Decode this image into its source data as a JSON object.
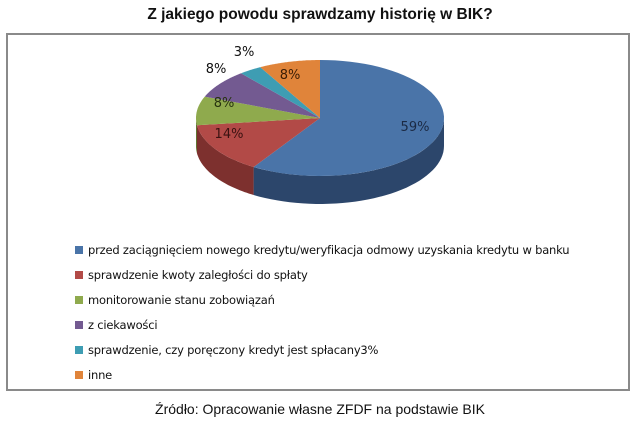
{
  "title": "Z jakiego  powodu sprawdzamy historię  w BIK?",
  "source": "Źródło: Opracowanie własne ZFDF na podstawie BIK",
  "chart_data": {
    "type": "pie",
    "title": "Z jakiego  powodu sprawdzamy historię  w BIK?",
    "style": "3d",
    "legend_position": "bottom-left",
    "categories": [
      "przed zaciągnięciem nowego kredytu/weryfikacja odmowy uzyskania kredytu w banku",
      "sprawdzenie kwoty zaległości do spłaty",
      "monitorowanie stanu zobowiązań",
      "z ciekawości",
      "sprawdzenie, czy poręczony  kredyt  jest spłacany3%",
      "inne"
    ],
    "values": [
      59,
      14,
      8,
      8,
      3,
      8
    ],
    "labels": [
      "59%",
      "14%",
      "8%",
      "8%",
      "3%",
      "8%"
    ],
    "colors": [
      "#4a74a8",
      "#b24a47",
      "#8faa4d",
      "#735a91",
      "#3e9db3",
      "#e0843a"
    ],
    "side_colors": [
      "#2c466b",
      "#7d302e",
      "#5f7430",
      "#4c3b62",
      "#276b7a",
      "#a85d22"
    ]
  },
  "legend": {
    "items": [
      {
        "label": "przed zaciągnięciem nowego kredytu/weryfikacja odmowy uzyskania kredytu  w banku",
        "color": "#4a74a8"
      },
      {
        "label": "sprawdzenie kwoty zaległości do spłaty",
        "color": "#b24a47"
      },
      {
        "label": "monitorowanie stanu zobowiązań",
        "color": "#8faa4d"
      },
      {
        "label": "z ciekawości",
        "color": "#735a91"
      },
      {
        "label": "sprawdzenie, czy poręczony  kredyt  jest spłacany3%",
        "color": "#3e9db3"
      },
      {
        "label": "inne",
        "color": "#e0843a"
      }
    ]
  }
}
